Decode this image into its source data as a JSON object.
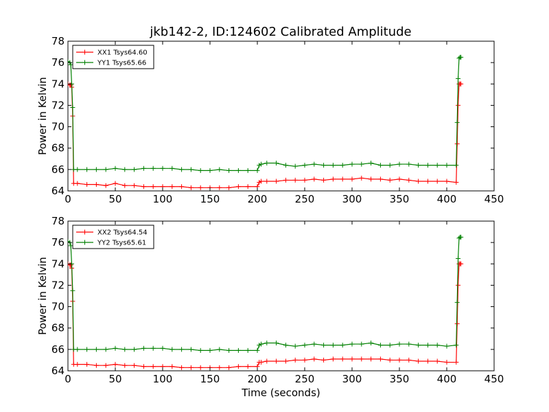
{
  "figure": {
    "title": "jkb142-2, ID:124602 Calibrated Amplitude"
  },
  "chart_data": [
    {
      "type": "line",
      "title": "jkb142-2, ID:124602 Calibrated Amplitude",
      "xlabel": "",
      "ylabel": "Power in Kelvin",
      "xlim": [
        0,
        450
      ],
      "ylim": [
        64,
        78
      ],
      "xticks": [
        0,
        50,
        100,
        150,
        200,
        250,
        300,
        350,
        400,
        450
      ],
      "yticks": [
        64,
        66,
        68,
        70,
        72,
        74,
        76,
        78
      ],
      "grid": false,
      "legend_position": "top-left",
      "series": [
        {
          "name": "XX1 Tsys64.60",
          "color": "#ff0000",
          "x": [
            0,
            2,
            3,
            4,
            5,
            6,
            10,
            20,
            30,
            40,
            50,
            60,
            70,
            80,
            90,
            100,
            110,
            120,
            130,
            140,
            150,
            160,
            170,
            180,
            190,
            200,
            202,
            204,
            210,
            220,
            230,
            240,
            250,
            260,
            270,
            280,
            290,
            300,
            310,
            320,
            330,
            340,
            350,
            360,
            370,
            380,
            390,
            400,
            410,
            411,
            412,
            413,
            414,
            415
          ],
          "y": [
            74.0,
            73.9,
            73.9,
            73.7,
            71.0,
            64.7,
            64.7,
            64.6,
            64.6,
            64.5,
            64.7,
            64.5,
            64.5,
            64.4,
            64.4,
            64.4,
            64.4,
            64.4,
            64.3,
            64.3,
            64.3,
            64.3,
            64.3,
            64.4,
            64.4,
            64.4,
            64.8,
            64.9,
            64.9,
            64.9,
            65.0,
            65.0,
            65.0,
            65.1,
            65.0,
            65.1,
            65.1,
            65.1,
            65.2,
            65.1,
            65.1,
            65.0,
            65.1,
            65.0,
            64.9,
            64.9,
            64.9,
            64.9,
            64.8,
            68.4,
            72.0,
            74.0,
            74.0,
            74.0
          ]
        },
        {
          "name": "YY1 Tsys65.66",
          "color": "#008000",
          "x": [
            0,
            2,
            3,
            4,
            5,
            6,
            10,
            20,
            30,
            40,
            50,
            60,
            70,
            80,
            90,
            100,
            110,
            120,
            130,
            140,
            150,
            160,
            170,
            180,
            190,
            200,
            202,
            204,
            210,
            220,
            230,
            240,
            250,
            260,
            270,
            280,
            290,
            300,
            310,
            320,
            330,
            340,
            350,
            360,
            370,
            380,
            390,
            400,
            410,
            411,
            412,
            413,
            414,
            415
          ],
          "y": [
            76.1,
            76.0,
            75.8,
            74.0,
            71.8,
            66.0,
            66.0,
            66.0,
            66.0,
            66.0,
            66.1,
            66.0,
            66.0,
            66.1,
            66.1,
            66.1,
            66.1,
            66.0,
            66.0,
            65.9,
            65.9,
            66.0,
            65.9,
            65.9,
            65.9,
            65.9,
            66.4,
            66.5,
            66.6,
            66.6,
            66.4,
            66.3,
            66.4,
            66.5,
            66.4,
            66.4,
            66.4,
            66.5,
            66.5,
            66.6,
            66.4,
            66.4,
            66.5,
            66.5,
            66.4,
            66.4,
            66.4,
            66.4,
            66.4,
            70.4,
            74.5,
            76.4,
            76.5,
            76.5
          ]
        }
      ]
    },
    {
      "type": "line",
      "title": "",
      "xlabel": "Time (seconds)",
      "ylabel": "Power in Kelvin",
      "xlim": [
        0,
        450
      ],
      "ylim": [
        64,
        78
      ],
      "xticks": [
        0,
        50,
        100,
        150,
        200,
        250,
        300,
        350,
        400,
        450
      ],
      "yticks": [
        64,
        66,
        68,
        70,
        72,
        74,
        76,
        78
      ],
      "grid": false,
      "legend_position": "top-left",
      "series": [
        {
          "name": "XX2 Tsys64.54",
          "color": "#ff0000",
          "x": [
            0,
            2,
            3,
            4,
            5,
            6,
            10,
            20,
            30,
            40,
            50,
            60,
            70,
            80,
            90,
            100,
            110,
            120,
            130,
            140,
            150,
            160,
            170,
            180,
            190,
            200,
            202,
            204,
            210,
            220,
            230,
            240,
            250,
            260,
            270,
            280,
            290,
            300,
            310,
            320,
            330,
            340,
            350,
            360,
            370,
            380,
            390,
            400,
            410,
            411,
            412,
            413,
            414,
            415
          ],
          "y": [
            74.0,
            73.9,
            73.9,
            73.6,
            70.5,
            64.6,
            64.6,
            64.6,
            64.5,
            64.5,
            64.6,
            64.5,
            64.5,
            64.4,
            64.4,
            64.4,
            64.4,
            64.3,
            64.3,
            64.3,
            64.3,
            64.3,
            64.3,
            64.4,
            64.4,
            64.4,
            64.8,
            64.8,
            64.9,
            64.9,
            64.9,
            65.0,
            65.0,
            65.1,
            65.0,
            65.1,
            65.1,
            65.1,
            65.1,
            65.1,
            65.1,
            65.0,
            65.0,
            65.0,
            64.9,
            64.9,
            64.9,
            64.8,
            64.8,
            68.4,
            72.0,
            74.0,
            74.0,
            74.0
          ]
        },
        {
          "name": "YY2 Tsys65.61",
          "color": "#008000",
          "x": [
            0,
            2,
            3,
            4,
            5,
            6,
            10,
            20,
            30,
            40,
            50,
            60,
            70,
            80,
            90,
            100,
            110,
            120,
            130,
            140,
            150,
            160,
            170,
            180,
            190,
            200,
            202,
            204,
            210,
            220,
            230,
            240,
            250,
            260,
            270,
            280,
            290,
            300,
            310,
            320,
            330,
            340,
            350,
            360,
            370,
            380,
            390,
            400,
            410,
            411,
            412,
            413,
            414,
            415
          ],
          "y": [
            76.1,
            76.0,
            75.7,
            74.0,
            71.5,
            66.0,
            66.0,
            66.0,
            66.0,
            66.0,
            66.1,
            66.0,
            66.0,
            66.1,
            66.1,
            66.1,
            66.0,
            66.0,
            66.0,
            65.9,
            65.9,
            66.0,
            65.9,
            65.9,
            65.9,
            65.9,
            66.4,
            66.5,
            66.6,
            66.6,
            66.4,
            66.3,
            66.4,
            66.5,
            66.4,
            66.4,
            66.4,
            66.5,
            66.5,
            66.6,
            66.4,
            66.4,
            66.5,
            66.5,
            66.4,
            66.4,
            66.4,
            66.3,
            66.4,
            70.4,
            74.5,
            76.4,
            76.5,
            76.5
          ]
        }
      ]
    }
  ]
}
